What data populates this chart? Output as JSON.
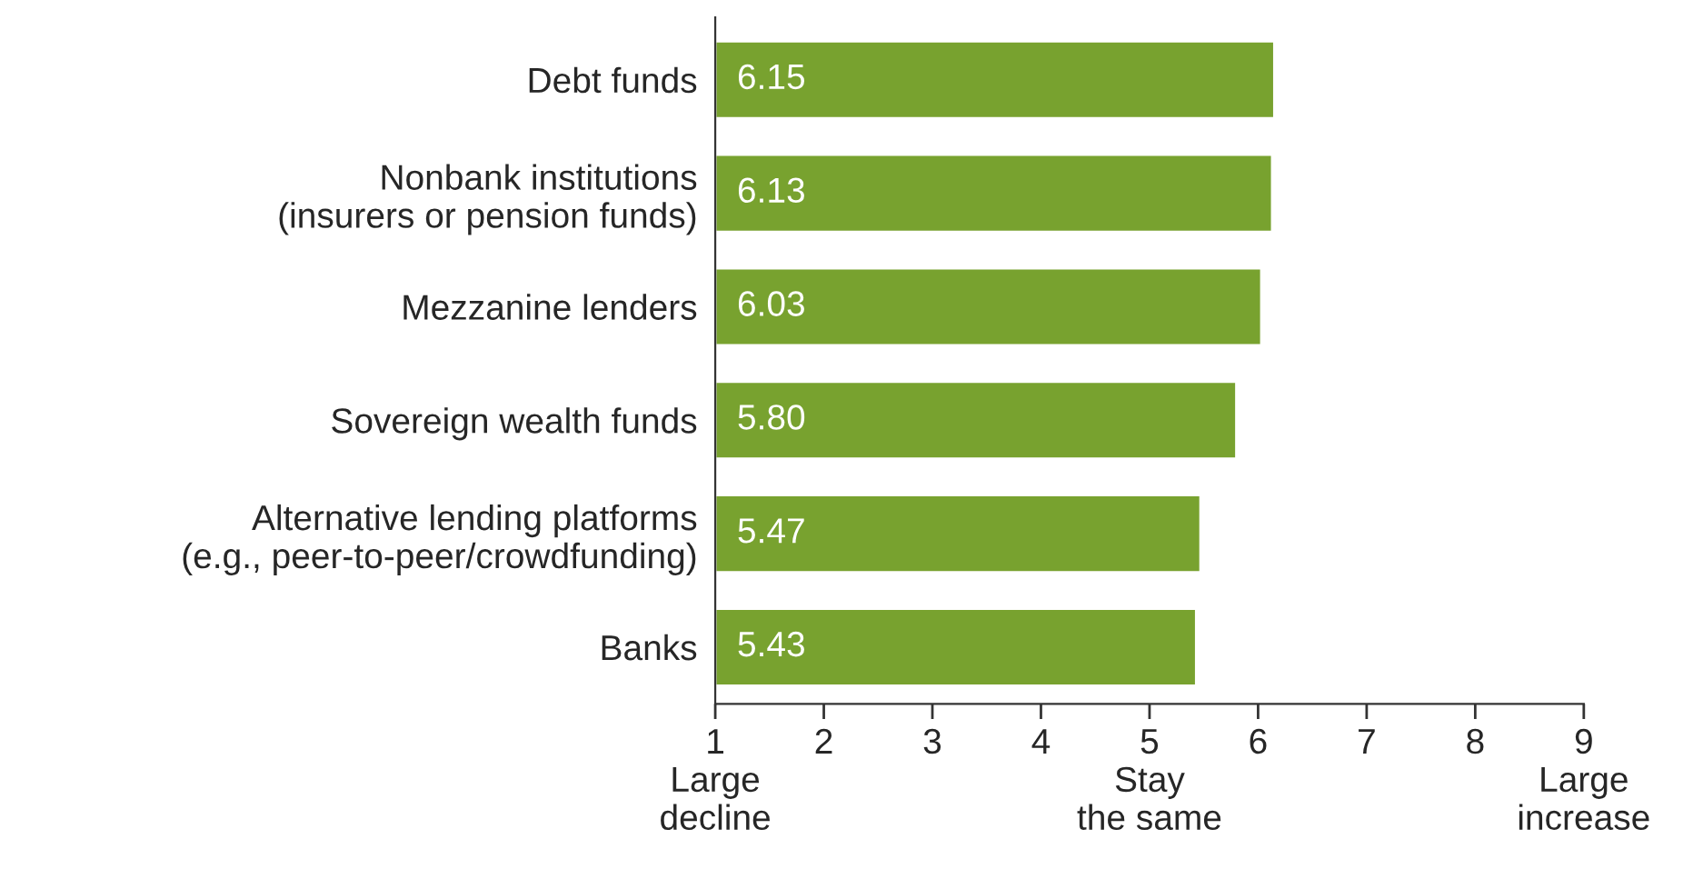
{
  "chart_data": {
    "type": "bar",
    "orientation": "horizontal",
    "categories": [
      "Debt funds",
      "Nonbank institutions\n(insurers or pension funds)",
      "Mezzanine lenders",
      "Sovereign wealth funds",
      "Alternative lending platforms\n(e.g., peer-to-peer/crowdfunding)",
      "Banks"
    ],
    "values": [
      6.15,
      6.13,
      6.03,
      5.8,
      5.47,
      5.43
    ],
    "value_labels": [
      "6.15",
      "6.13",
      "6.03",
      "5.80",
      "5.47",
      "5.43"
    ],
    "color": "#78a22f",
    "xlim": [
      1,
      9
    ],
    "xticks": [
      {
        "value": 1,
        "label": "1\nLarge\ndecline"
      },
      2,
      3,
      4,
      {
        "value": 5,
        "label": "5\nStay\nthe same"
      },
      6,
      7,
      8,
      {
        "value": 9,
        "label": "9\nLarge\nincrease"
      }
    ],
    "grid": false,
    "legend": false
  }
}
